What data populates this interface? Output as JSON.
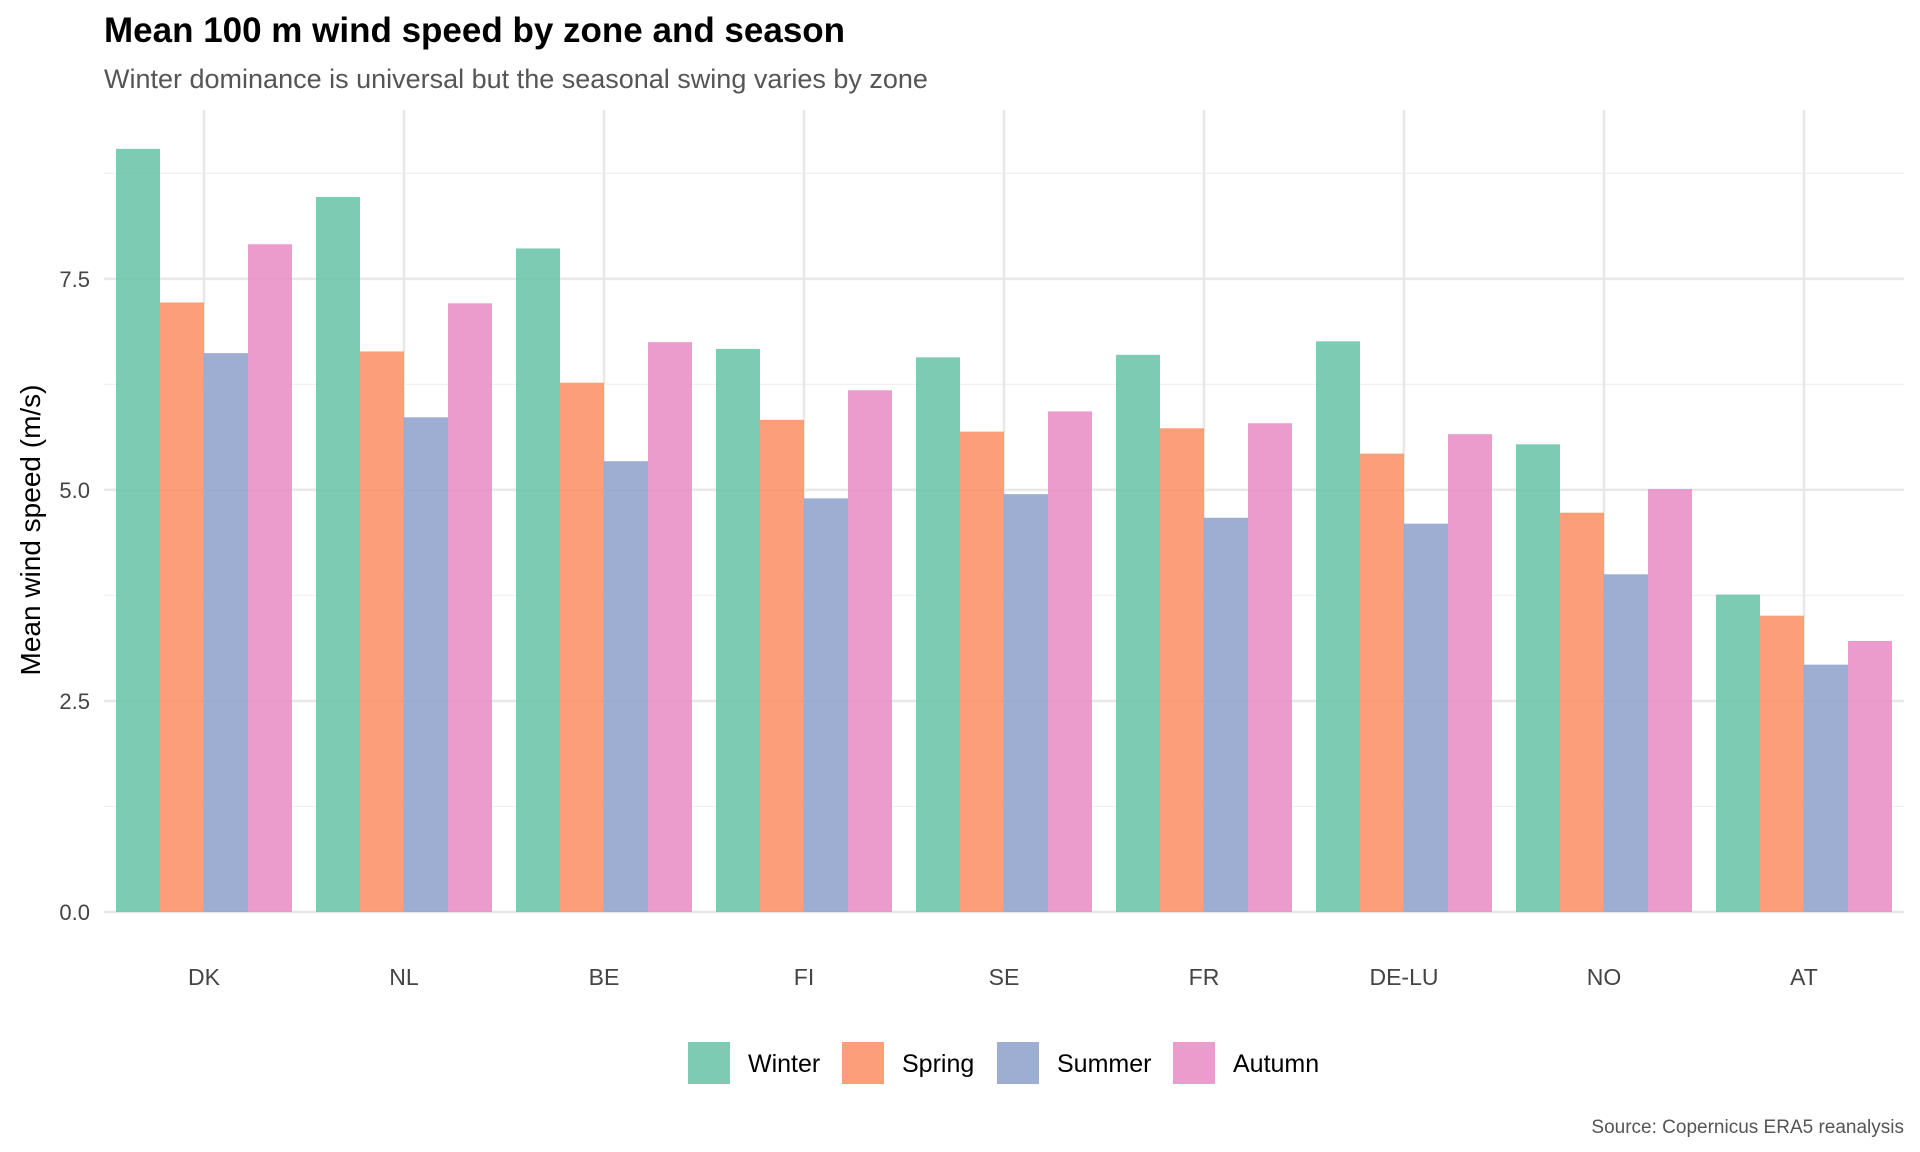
{
  "chart_data": {
    "type": "bar",
    "title": "Mean 100 m wind speed by zone and season",
    "subtitle": "Winter dominance is universal but the seasonal swing varies by zone",
    "xlabel": "",
    "ylabel": "Mean wind speed (m/s)",
    "caption": "Source: Copernicus ERA5 reanalysis",
    "ylim": [
      0,
      9.5
    ],
    "yticks": [
      0,
      2.5,
      5,
      7.5
    ],
    "ytick_labels": [
      "0.0",
      "2.5",
      "5.0",
      "7.5"
    ],
    "grid": true,
    "legend_position": "bottom",
    "categories": [
      "DK",
      "NL",
      "BE",
      "FI",
      "SE",
      "FR",
      "DE-LU",
      "NO",
      "AT"
    ],
    "series": [
      {
        "name": "Winter",
        "color": "#66c2a5",
        "values": [
          9.04,
          8.47,
          7.86,
          6.67,
          6.57,
          6.6,
          6.76,
          5.54,
          3.76
        ]
      },
      {
        "name": "Spring",
        "color": "#fc8d62",
        "values": [
          7.22,
          6.64,
          6.27,
          5.83,
          5.69,
          5.73,
          5.43,
          4.73,
          3.51
        ]
      },
      {
        "name": "Summer",
        "color": "#8da0cb",
        "values": [
          6.62,
          5.86,
          5.34,
          4.9,
          4.95,
          4.67,
          4.6,
          4.0,
          2.93
        ]
      },
      {
        "name": "Autumn",
        "color": "#e78ac3",
        "values": [
          7.91,
          7.21,
          6.75,
          6.18,
          5.93,
          5.79,
          5.66,
          5.01,
          3.21
        ]
      }
    ]
  }
}
